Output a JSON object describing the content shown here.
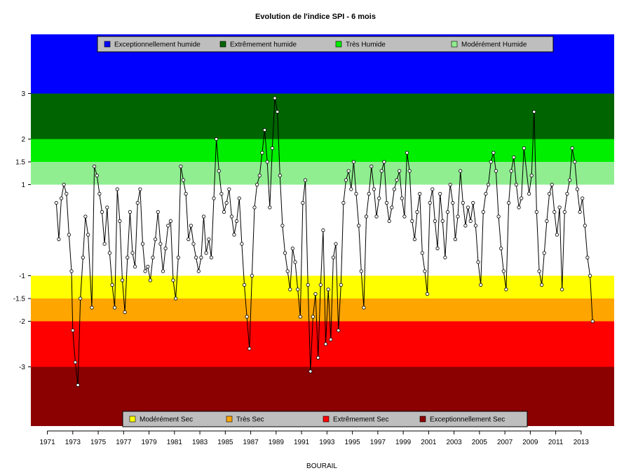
{
  "chart_data": {
    "type": "line",
    "title": "Evolution de l'indice SPI - 6 mois",
    "xlabel": "BOURAIL",
    "ylabel": "",
    "xlim": [
      1969.7,
      2015.6
    ],
    "ylim": [
      -4.3,
      4.3
    ],
    "x_ticks": [
      1971,
      1973,
      1975,
      1977,
      1979,
      1981,
      1983,
      1985,
      1987,
      1989,
      1991,
      1993,
      1995,
      1997,
      1999,
      2001,
      2003,
      2005,
      2007,
      2009,
      2011,
      2013
    ],
    "y_ticks": [
      -3,
      -2,
      -1.5,
      -1,
      1,
      1.5,
      2,
      3
    ],
    "grid": false,
    "bands": [
      {
        "name": "Exceptionnellement humide",
        "from": 3,
        "to": 4.3,
        "color": "#0000ff"
      },
      {
        "name": "Extrêmement humide",
        "from": 2,
        "to": 3,
        "color": "#006400"
      },
      {
        "name": "Très Humide",
        "from": 1.5,
        "to": 2,
        "color": "#00ee00"
      },
      {
        "name": "Modérément Humide",
        "from": 1,
        "to": 1.5,
        "color": "#90ee90"
      },
      {
        "name": "Modérément Sec",
        "from": -1.5,
        "to": -1,
        "color": "#ffff00"
      },
      {
        "name": "Très Sec",
        "from": -2,
        "to": -1.5,
        "color": "#ffa500"
      },
      {
        "name": "Extrêmement Sec",
        "from": -3,
        "to": -2,
        "color": "#ff0000"
      },
      {
        "name": "Exceptionnellement Sec",
        "from": -4.3,
        "to": -3,
        "color": "#8b0000"
      }
    ],
    "legend_top": {
      "placement": "top",
      "entries": [
        {
          "label": "Exceptionnellement humide",
          "color": "#0000ff"
        },
        {
          "label": "Extrêmement humide",
          "color": "#006400"
        },
        {
          "label": "Très Humide",
          "color": "#00ee00"
        },
        {
          "label": "Modérément Humide",
          "color": "#90ee90"
        }
      ]
    },
    "legend_bottom": {
      "placement": "bottom",
      "entries": [
        {
          "label": "Modérément Sec",
          "color": "#ffff00"
        },
        {
          "label": "Très Sec",
          "color": "#ffa500"
        },
        {
          "label": "Extrêmement Sec",
          "color": "#ff0000"
        },
        {
          "label": "Exceptionnellement Sec",
          "color": "#8b0000"
        }
      ]
    },
    "series": [
      {
        "values": [
          [
            1971.7,
            0.6
          ],
          [
            1971.9,
            -0.2
          ],
          [
            1972.1,
            0.7
          ],
          [
            1972.3,
            1.0
          ],
          [
            1972.5,
            0.8
          ],
          [
            1972.7,
            -0.1
          ],
          [
            1972.9,
            -0.9
          ],
          [
            1973.0,
            -2.2
          ],
          [
            1973.2,
            -2.9
          ],
          [
            1973.4,
            -3.4
          ],
          [
            1973.6,
            -1.5
          ],
          [
            1973.8,
            -0.6
          ],
          [
            1974.0,
            0.3
          ],
          [
            1974.2,
            -0.1
          ],
          [
            1974.5,
            -1.7
          ],
          [
            1974.7,
            1.4
          ],
          [
            1974.9,
            1.2
          ],
          [
            1975.1,
            0.8
          ],
          [
            1975.3,
            0.4
          ],
          [
            1975.5,
            -0.3
          ],
          [
            1975.7,
            0.5
          ],
          [
            1975.9,
            -0.5
          ],
          [
            1976.1,
            -1.2
          ],
          [
            1976.3,
            -1.7
          ],
          [
            1976.5,
            0.9
          ],
          [
            1976.7,
            0.2
          ],
          [
            1976.9,
            -1.1
          ],
          [
            1977.1,
            -1.8
          ],
          [
            1977.3,
            -0.6
          ],
          [
            1977.5,
            0.4
          ],
          [
            1977.7,
            -0.5
          ],
          [
            1977.9,
            -0.8
          ],
          [
            1978.1,
            0.6
          ],
          [
            1978.3,
            0.9
          ],
          [
            1978.5,
            -0.3
          ],
          [
            1978.7,
            -0.9
          ],
          [
            1978.9,
            -0.8
          ],
          [
            1979.1,
            -1.1
          ],
          [
            1979.3,
            -0.6
          ],
          [
            1979.5,
            -0.2
          ],
          [
            1979.7,
            0.4
          ],
          [
            1979.9,
            -0.3
          ],
          [
            1980.1,
            -0.9
          ],
          [
            1980.3,
            -0.4
          ],
          [
            1980.5,
            0.1
          ],
          [
            1980.7,
            0.2
          ],
          [
            1980.9,
            -1.1
          ],
          [
            1981.1,
            -1.5
          ],
          [
            1981.3,
            -0.6
          ],
          [
            1981.5,
            1.4
          ],
          [
            1981.7,
            1.1
          ],
          [
            1981.9,
            0.8
          ],
          [
            1982.1,
            -0.2
          ],
          [
            1982.3,
            0.1
          ],
          [
            1982.5,
            -0.3
          ],
          [
            1982.7,
            -0.6
          ],
          [
            1982.9,
            -0.9
          ],
          [
            1983.1,
            -0.6
          ],
          [
            1983.3,
            0.3
          ],
          [
            1983.5,
            -0.5
          ],
          [
            1983.7,
            -0.2
          ],
          [
            1983.9,
            -0.6
          ],
          [
            1984.1,
            0.7
          ],
          [
            1984.3,
            2.0
          ],
          [
            1984.5,
            1.3
          ],
          [
            1984.7,
            0.8
          ],
          [
            1984.9,
            0.4
          ],
          [
            1985.1,
            0.6
          ],
          [
            1985.3,
            0.9
          ],
          [
            1985.5,
            0.3
          ],
          [
            1985.7,
            -0.1
          ],
          [
            1985.9,
            0.2
          ],
          [
            1986.1,
            0.7
          ],
          [
            1986.3,
            -0.3
          ],
          [
            1986.5,
            -1.2
          ],
          [
            1986.7,
            -1.9
          ],
          [
            1986.9,
            -2.6
          ],
          [
            1987.1,
            -1.0
          ],
          [
            1987.3,
            0.5
          ],
          [
            1987.5,
            1.0
          ],
          [
            1987.7,
            1.2
          ],
          [
            1987.9,
            1.7
          ],
          [
            1988.1,
            2.2
          ],
          [
            1988.3,
            1.5
          ],
          [
            1988.5,
            0.5
          ],
          [
            1988.7,
            1.8
          ],
          [
            1988.9,
            2.9
          ],
          [
            1989.1,
            2.6
          ],
          [
            1989.3,
            1.2
          ],
          [
            1989.5,
            0.1
          ],
          [
            1989.7,
            -0.5
          ],
          [
            1989.9,
            -0.9
          ],
          [
            1990.1,
            -1.3
          ],
          [
            1990.3,
            -0.4
          ],
          [
            1990.5,
            -0.7
          ],
          [
            1990.7,
            -1.3
          ],
          [
            1990.9,
            -1.9
          ],
          [
            1991.1,
            0.6
          ],
          [
            1991.3,
            1.1
          ],
          [
            1991.5,
            -1.2
          ],
          [
            1991.7,
            -3.1
          ],
          [
            1991.9,
            -1.9
          ],
          [
            1992.1,
            -1.4
          ],
          [
            1992.3,
            -2.8
          ],
          [
            1992.5,
            -1.2
          ],
          [
            1992.7,
            0.0
          ],
          [
            1992.9,
            -2.5
          ],
          [
            1993.1,
            -1.3
          ],
          [
            1993.3,
            -2.4
          ],
          [
            1993.5,
            -0.6
          ],
          [
            1993.7,
            -0.3
          ],
          [
            1993.9,
            -2.2
          ],
          [
            1994.1,
            -1.2
          ],
          [
            1994.3,
            0.6
          ],
          [
            1994.5,
            1.1
          ],
          [
            1994.7,
            1.3
          ],
          [
            1994.9,
            0.9
          ],
          [
            1995.1,
            1.5
          ],
          [
            1995.3,
            0.8
          ],
          [
            1995.5,
            0.1
          ],
          [
            1995.7,
            -0.9
          ],
          [
            1995.9,
            -1.7
          ],
          [
            1996.1,
            0.3
          ],
          [
            1996.3,
            0.8
          ],
          [
            1996.5,
            1.4
          ],
          [
            1996.7,
            0.9
          ],
          [
            1996.9,
            0.3
          ],
          [
            1997.1,
            0.7
          ],
          [
            1997.3,
            1.3
          ],
          [
            1997.5,
            1.5
          ],
          [
            1997.7,
            0.6
          ],
          [
            1997.9,
            0.2
          ],
          [
            1998.1,
            0.5
          ],
          [
            1998.3,
            0.9
          ],
          [
            1998.5,
            1.1
          ],
          [
            1998.7,
            1.3
          ],
          [
            1998.9,
            0.7
          ],
          [
            1999.1,
            0.3
          ],
          [
            1999.3,
            1.7
          ],
          [
            1999.5,
            1.3
          ],
          [
            1999.7,
            0.2
          ],
          [
            1999.9,
            -0.2
          ],
          [
            2000.1,
            0.4
          ],
          [
            2000.3,
            0.8
          ],
          [
            2000.5,
            -0.5
          ],
          [
            2000.7,
            -0.9
          ],
          [
            2000.9,
            -1.4
          ],
          [
            2001.1,
            0.6
          ],
          [
            2001.3,
            0.9
          ],
          [
            2001.5,
            0.2
          ],
          [
            2001.7,
            -0.4
          ],
          [
            2001.9,
            0.8
          ],
          [
            2002.1,
            0.2
          ],
          [
            2002.3,
            -0.6
          ],
          [
            2002.5,
            0.4
          ],
          [
            2002.7,
            1.0
          ],
          [
            2002.9,
            0.6
          ],
          [
            2003.1,
            -0.2
          ],
          [
            2003.3,
            0.3
          ],
          [
            2003.5,
            1.3
          ],
          [
            2003.7,
            0.6
          ],
          [
            2003.9,
            0.1
          ],
          [
            2004.1,
            0.5
          ],
          [
            2004.3,
            0.2
          ],
          [
            2004.5,
            0.6
          ],
          [
            2004.7,
            0.1
          ],
          [
            2004.9,
            -0.7
          ],
          [
            2005.1,
            -1.2
          ],
          [
            2005.3,
            0.4
          ],
          [
            2005.5,
            0.8
          ],
          [
            2005.7,
            1.0
          ],
          [
            2005.9,
            1.5
          ],
          [
            2006.1,
            1.7
          ],
          [
            2006.3,
            1.3
          ],
          [
            2006.5,
            0.3
          ],
          [
            2006.7,
            -0.4
          ],
          [
            2006.9,
            -0.9
          ],
          [
            2007.1,
            -1.3
          ],
          [
            2007.3,
            0.6
          ],
          [
            2007.5,
            1.3
          ],
          [
            2007.7,
            1.6
          ],
          [
            2007.9,
            1.0
          ],
          [
            2008.1,
            0.5
          ],
          [
            2008.3,
            0.7
          ],
          [
            2008.5,
            1.8
          ],
          [
            2008.9,
            0.8
          ],
          [
            2009.1,
            1.2
          ],
          [
            2009.3,
            2.6
          ],
          [
            2009.5,
            0.4
          ],
          [
            2009.7,
            -0.9
          ],
          [
            2009.9,
            -1.2
          ],
          [
            2010.1,
            -0.5
          ],
          [
            2010.3,
            0.2
          ],
          [
            2010.5,
            0.8
          ],
          [
            2010.7,
            1.0
          ],
          [
            2010.9,
            0.4
          ],
          [
            2011.1,
            -0.1
          ],
          [
            2011.3,
            0.5
          ],
          [
            2011.5,
            -1.3
          ],
          [
            2011.7,
            0.4
          ],
          [
            2011.9,
            0.8
          ],
          [
            2012.1,
            1.1
          ],
          [
            2012.3,
            1.8
          ],
          [
            2012.5,
            1.5
          ],
          [
            2012.7,
            0.9
          ],
          [
            2012.9,
            0.4
          ],
          [
            2013.1,
            0.7
          ],
          [
            2013.3,
            0.1
          ],
          [
            2013.5,
            -0.6
          ],
          [
            2013.7,
            -1.0
          ],
          [
            2013.9,
            -2.0
          ]
        ]
      }
    ]
  }
}
